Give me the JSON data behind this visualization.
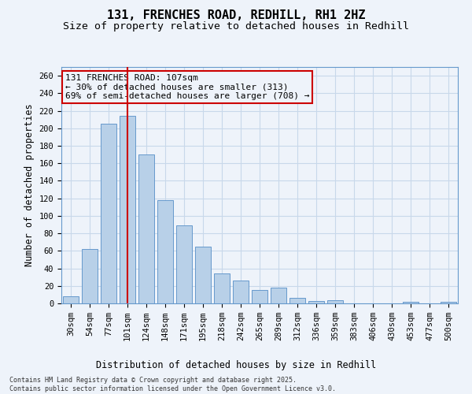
{
  "title_line1": "131, FRENCHES ROAD, REDHILL, RH1 2HZ",
  "title_line2": "Size of property relative to detached houses in Redhill",
  "xlabel": "Distribution of detached houses by size in Redhill",
  "ylabel": "Number of detached properties",
  "categories": [
    "30sqm",
    "54sqm",
    "77sqm",
    "101sqm",
    "124sqm",
    "148sqm",
    "171sqm",
    "195sqm",
    "218sqm",
    "242sqm",
    "265sqm",
    "289sqm",
    "312sqm",
    "336sqm",
    "359sqm",
    "383sqm",
    "406sqm",
    "430sqm",
    "453sqm",
    "477sqm",
    "500sqm"
  ],
  "values": [
    8,
    62,
    205,
    214,
    170,
    118,
    89,
    65,
    34,
    26,
    15,
    18,
    6,
    3,
    4,
    0,
    0,
    0,
    2,
    0,
    2
  ],
  "bar_color": "#b8d0e8",
  "bar_edge_color": "#6699cc",
  "grid_color": "#c8d8ea",
  "background_color": "#eef3fa",
  "vline_index": 3,
  "vline_color": "#cc0000",
  "annotation_text": "131 FRENCHES ROAD: 107sqm\n← 30% of detached houses are smaller (313)\n69% of semi-detached houses are larger (708) →",
  "annotation_box_edgecolor": "#cc0000",
  "ylim": [
    0,
    270
  ],
  "yticks": [
    0,
    20,
    40,
    60,
    80,
    100,
    120,
    140,
    160,
    180,
    200,
    220,
    240,
    260
  ],
  "footnote_line1": "Contains HM Land Registry data © Crown copyright and database right 2025.",
  "footnote_line2": "Contains public sector information licensed under the Open Government Licence v3.0.",
  "title_fontsize": 11,
  "subtitle_fontsize": 9.5,
  "axis_label_fontsize": 8.5,
  "tick_fontsize": 7.5,
  "annotation_fontsize": 8
}
